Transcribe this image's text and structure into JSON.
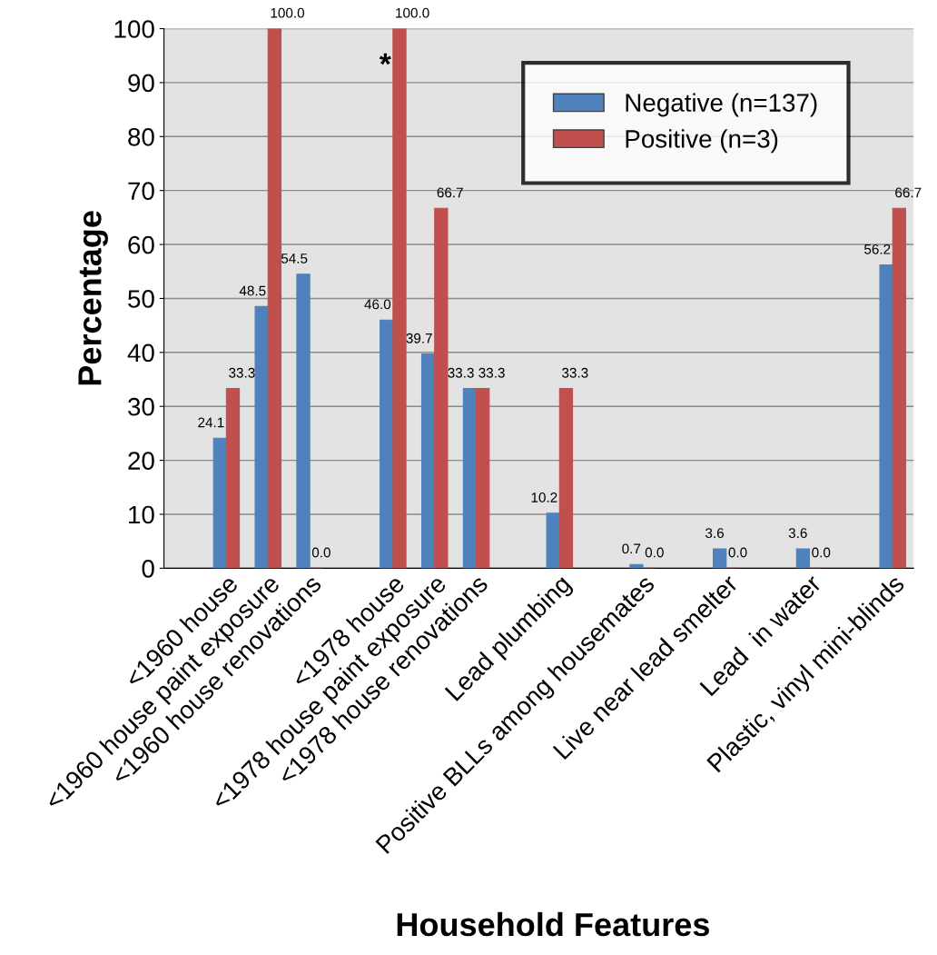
{
  "chart_data": {
    "type": "bar",
    "xlabel": "Household Features",
    "ylabel": "Percentage",
    "categories": [
      null,
      "<1960 house",
      "<1960 house paint exposure",
      "<1960 house renovations",
      null,
      "<1978 house",
      "<1978 house paint exposure",
      "<1978 house renovations",
      null,
      "Lead plumbing",
      null,
      "Positive BLLs among housemates",
      null,
      "Live near lead smelter",
      null,
      "Lead  in water",
      null,
      "Plastic, vinyl mini-blinds"
    ],
    "series": [
      {
        "name": "Negative (n=137)",
        "color": "#4f81bd",
        "values": [
          null,
          24.1,
          48.5,
          54.5,
          null,
          46.0,
          39.7,
          33.3,
          null,
          10.2,
          null,
          0.7,
          null,
          3.6,
          null,
          3.6,
          null,
          56.2
        ],
        "value_labels": [
          null,
          "24.1",
          "48.5",
          "54.5",
          null,
          "46.0",
          "39.7",
          "33.3",
          null,
          "10.2",
          null,
          "0.7",
          null,
          "3.6",
          null,
          "3.6",
          null,
          "56.2"
        ]
      },
      {
        "name": "Positive (n=3)",
        "color": "#c0504d",
        "values": [
          null,
          33.3,
          100.0,
          0.0,
          null,
          100.0,
          66.7,
          33.3,
          null,
          33.3,
          null,
          0.0,
          null,
          0.0,
          null,
          0.0,
          null,
          66.7
        ],
        "value_labels": [
          null,
          "33.3",
          "100.0",
          "0.0",
          null,
          "100.0",
          "66.7",
          "33.3",
          null,
          "33.3",
          null,
          "0.0",
          null,
          "0.0",
          null,
          "0.0",
          null,
          "66.7"
        ]
      }
    ],
    "ylim": [
      0,
      100
    ],
    "yticks": [
      0,
      10,
      20,
      30,
      40,
      50,
      60,
      70,
      80,
      90,
      100
    ],
    "grid": "y",
    "legend": "top right",
    "annotations": [
      {
        "text": "*",
        "x": "<1978 house",
        "y": 93
      }
    ]
  }
}
